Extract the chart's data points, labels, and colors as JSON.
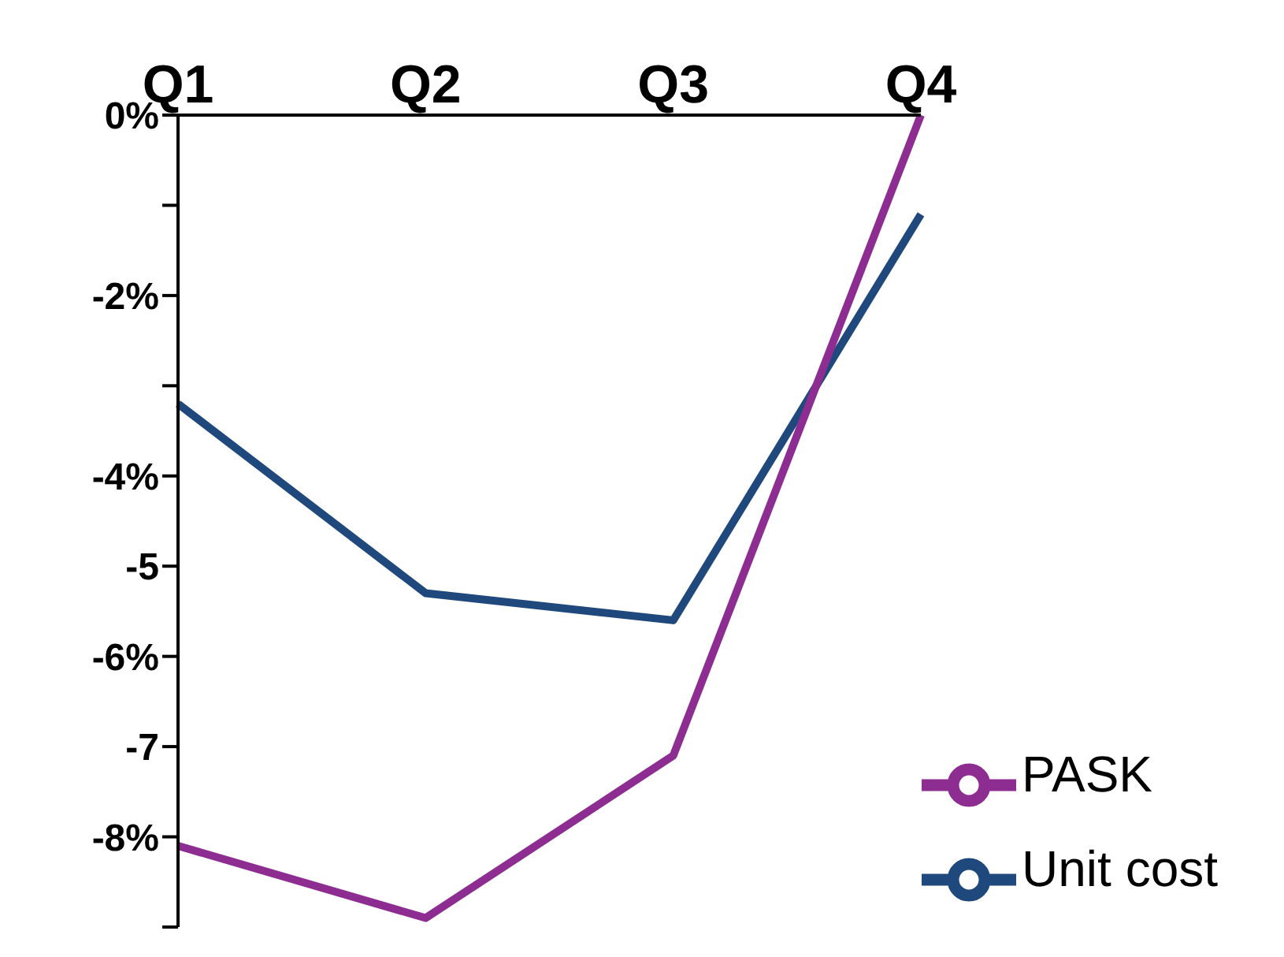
{
  "chart_data": {
    "type": "line",
    "categories": [
      "Q1",
      "Q2",
      "Q3",
      "Q4"
    ],
    "series": [
      {
        "name": "Unit cost",
        "color": "#1f497d",
        "values": [
          -3.2,
          -5.3,
          -5.6,
          -1.1
        ]
      },
      {
        "name": "PASK",
        "color": "#8e2d91",
        "values": [
          -8.1,
          -8.9,
          -7.1,
          0
        ]
      }
    ],
    "ylim": [
      -9,
      0
    ],
    "yticks": [
      {
        "value": 0,
        "label": "0%"
      },
      {
        "value": -1,
        "label": null
      },
      {
        "value": -2,
        "label": "-2%"
      },
      {
        "value": -3,
        "label": null
      },
      {
        "value": -4,
        "label": "-4%"
      },
      -5,
      {
        "value": -6,
        "label": "-6%"
      },
      -7,
      {
        "value": -8,
        "label": "-8%"
      },
      {
        "value": -9,
        "label": null
      }
    ],
    "grid": false,
    "legend": "bottom right",
    "marker": "none",
    "line_style": "solid"
  }
}
